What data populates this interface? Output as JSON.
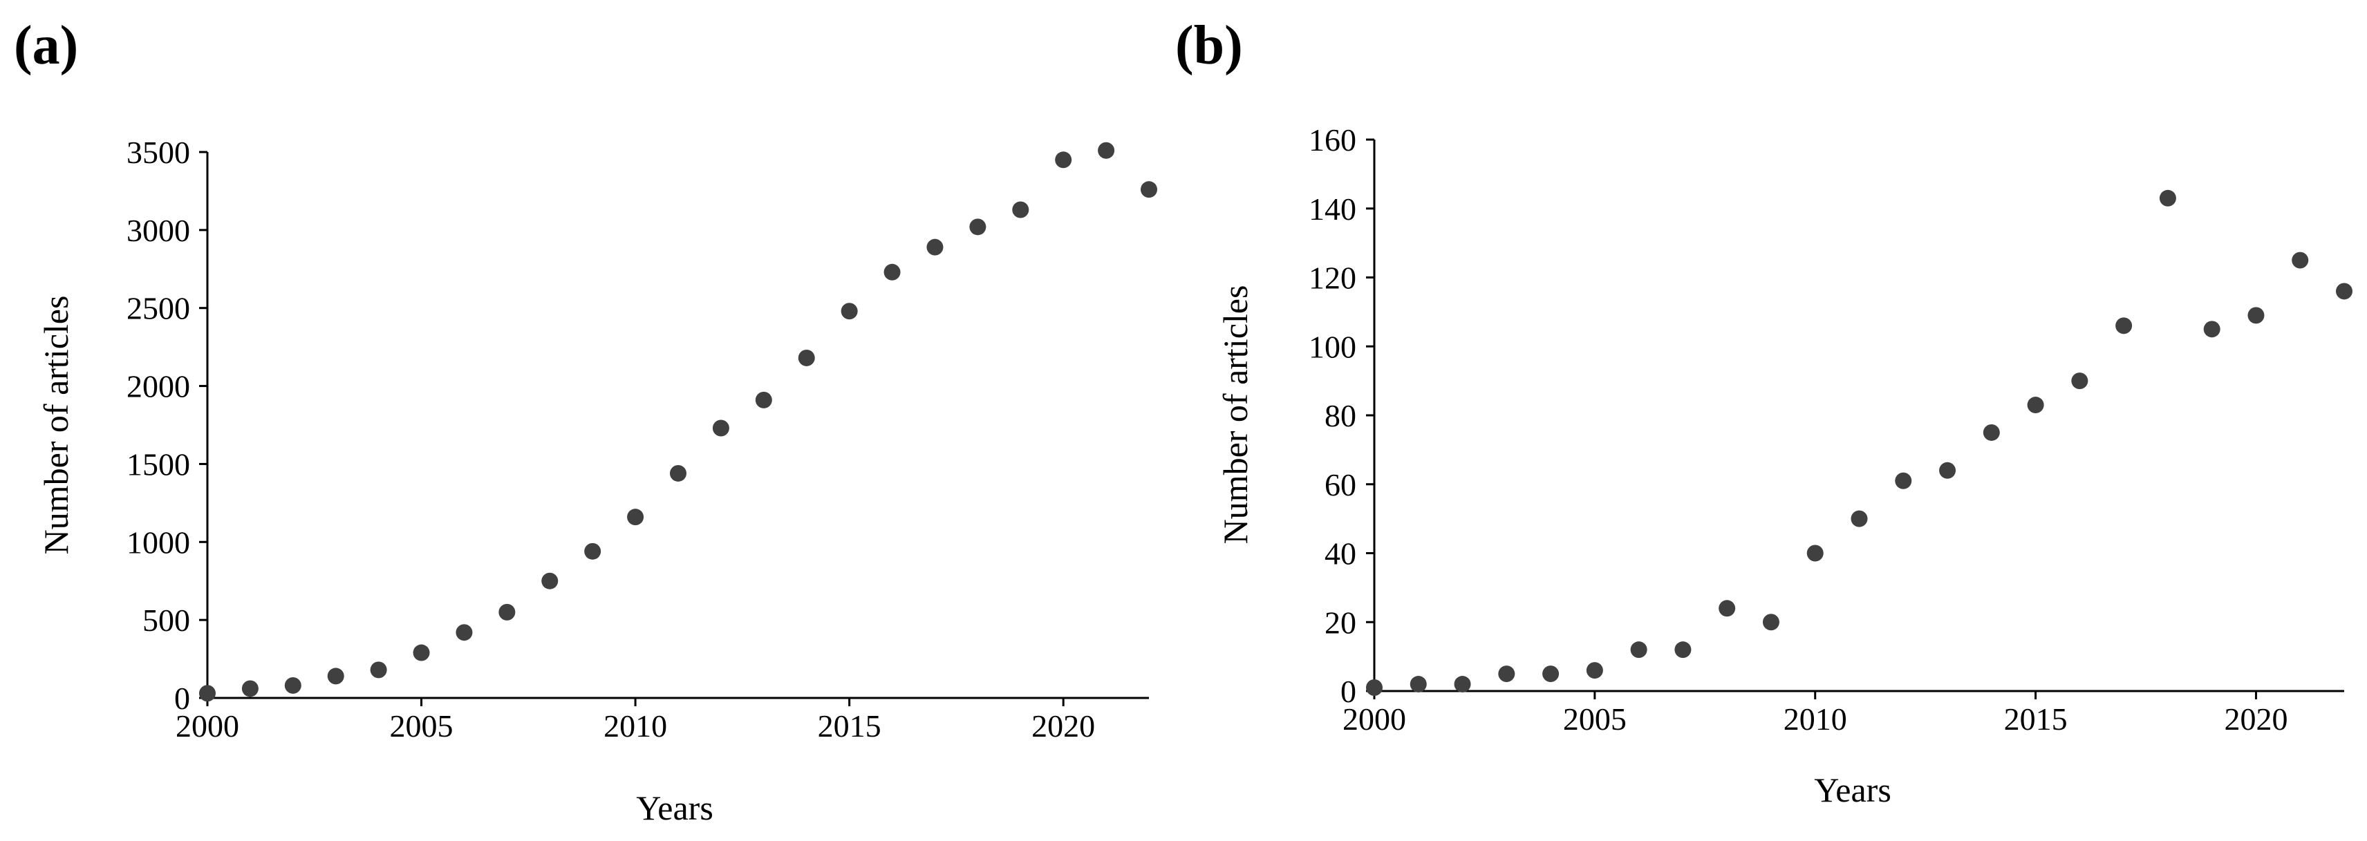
{
  "chart_data": [
    {
      "panel": "(a)",
      "type": "scatter",
      "xlabel": "Years",
      "ylabel": "Number of articles",
      "xlim": [
        2000,
        2022
      ],
      "ylim": [
        0,
        3500
      ],
      "x_ticks": [
        2000,
        2005,
        2010,
        2015,
        2020
      ],
      "y_ticks": [
        0,
        500,
        1000,
        1500,
        2000,
        2500,
        3000,
        3500
      ],
      "grid": false,
      "legend": "none",
      "x": [
        2000,
        2001,
        2002,
        2003,
        2004,
        2005,
        2006,
        2007,
        2008,
        2009,
        2010,
        2011,
        2012,
        2013,
        2014,
        2015,
        2016,
        2017,
        2018,
        2019,
        2020,
        2021,
        2022
      ],
      "values": [
        30,
        60,
        80,
        140,
        180,
        290,
        420,
        550,
        750,
        940,
        1160,
        1440,
        1730,
        1910,
        2180,
        2480,
        2730,
        2890,
        3020,
        3130,
        3450,
        3510,
        3260
      ]
    },
    {
      "panel": "(b)",
      "type": "scatter",
      "xlabel": "Years",
      "ylabel": "Number of articles",
      "xlim": [
        2000,
        2022
      ],
      "ylim": [
        0,
        160
      ],
      "x_ticks": [
        2000,
        2005,
        2010,
        2015,
        2020
      ],
      "y_ticks": [
        0,
        20,
        40,
        60,
        80,
        100,
        120,
        140,
        160
      ],
      "grid": false,
      "legend": "none",
      "x": [
        2000,
        2001,
        2002,
        2003,
        2004,
        2005,
        2006,
        2007,
        2008,
        2009,
        2010,
        2011,
        2012,
        2013,
        2014,
        2015,
        2016,
        2017,
        2018,
        2019,
        2020,
        2021,
        2022
      ],
      "values": [
        1,
        2,
        2,
        5,
        5,
        6,
        12,
        12,
        24,
        20,
        40,
        50,
        61,
        64,
        75,
        83,
        90,
        106,
        143,
        105,
        109,
        125,
        116
      ]
    }
  ]
}
